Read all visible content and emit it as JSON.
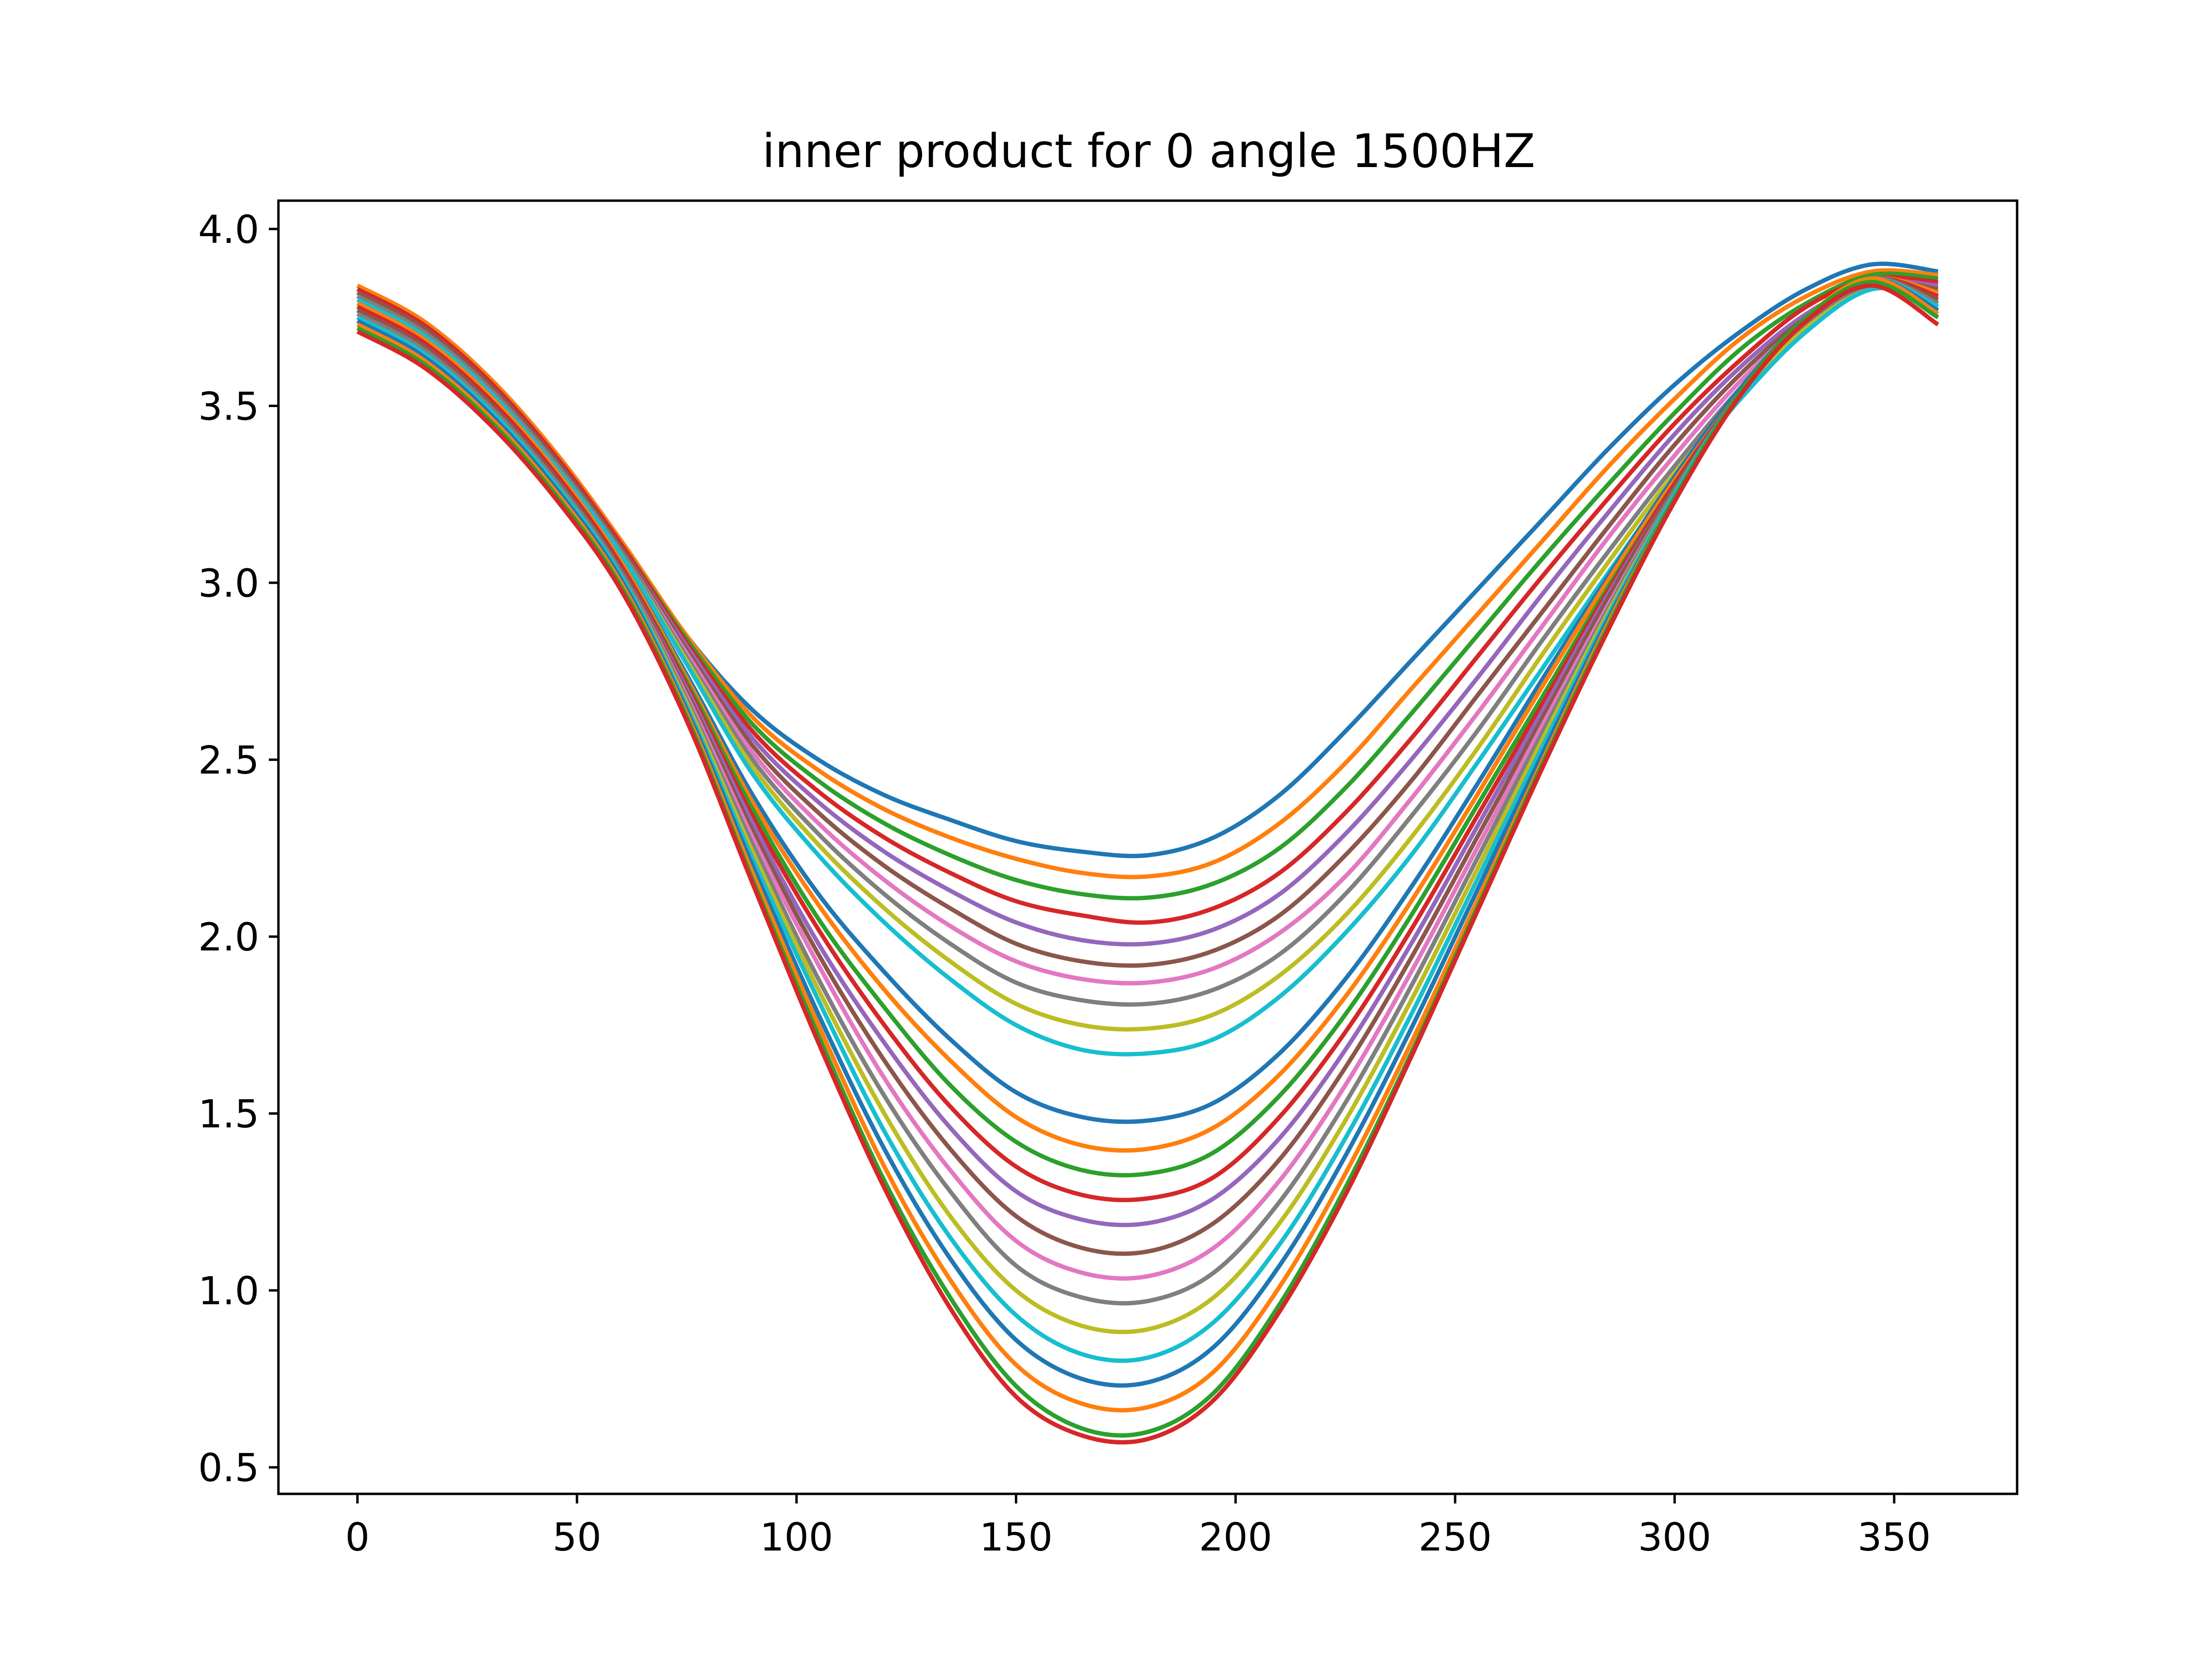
{
  "chart_data": {
    "type": "line",
    "title": "inner product for 0 angle 1500HZ",
    "xlabel": "",
    "ylabel": "",
    "xlim": [
      -18,
      378
    ],
    "ylim": [
      0.425,
      4.08
    ],
    "xticks": [
      0,
      50,
      100,
      150,
      200,
      250,
      300,
      350
    ],
    "xtick_labels": [
      "0",
      "50",
      "100",
      "150",
      "200",
      "250",
      "300",
      "350"
    ],
    "yticks": [
      0.5,
      1.0,
      1.5,
      2.0,
      2.5,
      3.0,
      3.5,
      4.0
    ],
    "ytick_labels": [
      "0.5",
      "1.0",
      "1.5",
      "2.0",
      "2.5",
      "3.0",
      "3.5",
      "4.0"
    ],
    "grid": false,
    "legend": "none",
    "series_colors": [
      "#1f77b4",
      "#ff7f0e",
      "#2ca02c",
      "#d62728",
      "#9467bd",
      "#8c564b",
      "#e377c2",
      "#7f7f7f",
      "#bcbd22",
      "#17becf"
    ],
    "x": [
      0,
      15,
      30,
      45,
      60,
      75,
      90,
      105,
      120,
      135,
      150,
      165,
      180,
      195,
      210,
      225,
      240,
      255,
      270,
      285,
      300,
      315,
      330,
      345,
      360
    ],
    "series": [
      {
        "values": [
          3.84,
          3.74,
          3.58,
          3.37,
          3.12,
          2.85,
          2.64,
          2.5,
          2.4,
          2.33,
          2.27,
          2.24,
          2.23,
          2.28,
          2.4,
          2.58,
          2.78,
          2.98,
          3.18,
          3.38,
          3.56,
          3.71,
          3.83,
          3.9,
          3.88
        ]
      },
      {
        "values": [
          3.84,
          3.74,
          3.58,
          3.37,
          3.12,
          2.85,
          2.62,
          2.47,
          2.36,
          2.28,
          2.22,
          2.18,
          2.17,
          2.21,
          2.32,
          2.49,
          2.7,
          2.91,
          3.12,
          3.33,
          3.52,
          3.69,
          3.81,
          3.88,
          3.87
        ]
      },
      {
        "values": [
          3.83,
          3.73,
          3.57,
          3.36,
          3.11,
          2.84,
          2.6,
          2.44,
          2.32,
          2.23,
          2.16,
          2.12,
          2.11,
          2.15,
          2.25,
          2.42,
          2.63,
          2.85,
          3.07,
          3.28,
          3.48,
          3.66,
          3.79,
          3.87,
          3.86
        ]
      },
      {
        "values": [
          3.83,
          3.73,
          3.57,
          3.36,
          3.11,
          2.83,
          2.58,
          2.41,
          2.28,
          2.18,
          2.1,
          2.06,
          2.04,
          2.08,
          2.18,
          2.35,
          2.56,
          2.79,
          3.02,
          3.24,
          3.45,
          3.63,
          3.78,
          3.86,
          3.85
        ]
      },
      {
        "values": [
          3.82,
          3.72,
          3.56,
          3.35,
          3.1,
          2.82,
          2.56,
          2.38,
          2.24,
          2.13,
          2.04,
          1.99,
          1.98,
          2.02,
          2.12,
          2.29,
          2.5,
          2.73,
          2.97,
          3.2,
          3.42,
          3.61,
          3.76,
          3.85,
          3.84
        ]
      },
      {
        "values": [
          3.82,
          3.72,
          3.56,
          3.35,
          3.1,
          2.81,
          2.54,
          2.35,
          2.2,
          2.08,
          1.98,
          1.93,
          1.92,
          1.96,
          2.06,
          2.23,
          2.44,
          2.68,
          2.92,
          3.16,
          3.39,
          3.59,
          3.75,
          3.85,
          3.83
        ]
      },
      {
        "values": [
          3.81,
          3.71,
          3.55,
          3.34,
          3.09,
          2.8,
          2.52,
          2.32,
          2.16,
          2.03,
          1.93,
          1.88,
          1.87,
          1.91,
          2.01,
          2.17,
          2.39,
          2.63,
          2.88,
          3.13,
          3.36,
          3.57,
          3.74,
          3.84,
          3.82
        ]
      },
      {
        "values": [
          3.81,
          3.71,
          3.55,
          3.34,
          3.09,
          2.79,
          2.5,
          2.29,
          2.12,
          1.98,
          1.87,
          1.82,
          1.81,
          1.85,
          1.95,
          2.12,
          2.34,
          2.58,
          2.84,
          3.09,
          3.33,
          3.55,
          3.73,
          3.84,
          3.81
        ]
      },
      {
        "values": [
          3.8,
          3.7,
          3.54,
          3.33,
          3.08,
          2.78,
          2.48,
          2.26,
          2.08,
          1.93,
          1.81,
          1.75,
          1.74,
          1.78,
          1.89,
          2.06,
          2.28,
          2.53,
          2.8,
          3.06,
          3.31,
          3.53,
          3.72,
          3.83,
          3.8
        ]
      },
      {
        "values": [
          3.8,
          3.7,
          3.54,
          3.33,
          3.08,
          2.77,
          2.46,
          2.23,
          2.04,
          1.88,
          1.75,
          1.68,
          1.67,
          1.71,
          1.83,
          2.01,
          2.23,
          2.49,
          2.76,
          3.03,
          3.29,
          3.52,
          3.71,
          3.83,
          3.8
        ]
      },
      {
        "values": [
          3.79,
          3.69,
          3.53,
          3.32,
          3.06,
          2.74,
          2.4,
          2.12,
          1.9,
          1.71,
          1.56,
          1.49,
          1.48,
          1.53,
          1.67,
          1.88,
          2.14,
          2.43,
          2.73,
          3.02,
          3.3,
          3.55,
          3.75,
          3.86,
          3.82
        ]
      },
      {
        "values": [
          3.79,
          3.69,
          3.53,
          3.32,
          3.06,
          2.73,
          2.38,
          2.09,
          1.85,
          1.65,
          1.49,
          1.41,
          1.4,
          1.46,
          1.61,
          1.83,
          2.1,
          2.4,
          2.71,
          3.01,
          3.29,
          3.54,
          3.75,
          3.86,
          3.82
        ]
      },
      {
        "values": [
          3.78,
          3.68,
          3.52,
          3.31,
          3.05,
          2.72,
          2.36,
          2.05,
          1.8,
          1.58,
          1.42,
          1.34,
          1.33,
          1.39,
          1.55,
          1.78,
          2.06,
          2.37,
          2.68,
          2.99,
          3.28,
          3.54,
          3.75,
          3.86,
          3.81
        ]
      },
      {
        "values": [
          3.78,
          3.68,
          3.52,
          3.31,
          3.05,
          2.71,
          2.34,
          2.02,
          1.75,
          1.52,
          1.35,
          1.27,
          1.26,
          1.32,
          1.49,
          1.73,
          2.02,
          2.34,
          2.66,
          2.98,
          3.28,
          3.54,
          3.75,
          3.86,
          3.81
        ]
      },
      {
        "values": [
          3.77,
          3.67,
          3.51,
          3.3,
          3.04,
          2.7,
          2.32,
          1.98,
          1.7,
          1.46,
          1.28,
          1.2,
          1.19,
          1.26,
          1.43,
          1.68,
          1.98,
          2.31,
          2.64,
          2.97,
          3.27,
          3.54,
          3.75,
          3.86,
          3.8
        ]
      },
      {
        "values": [
          3.77,
          3.67,
          3.51,
          3.3,
          3.04,
          2.69,
          2.3,
          1.95,
          1.65,
          1.4,
          1.21,
          1.12,
          1.11,
          1.19,
          1.37,
          1.63,
          1.94,
          2.28,
          2.62,
          2.96,
          3.27,
          3.54,
          3.75,
          3.86,
          3.8
        ]
      },
      {
        "values": [
          3.76,
          3.66,
          3.5,
          3.29,
          3.03,
          2.68,
          2.28,
          1.92,
          1.6,
          1.34,
          1.14,
          1.05,
          1.04,
          1.12,
          1.31,
          1.58,
          1.9,
          2.25,
          2.6,
          2.94,
          3.26,
          3.54,
          3.75,
          3.86,
          3.79
        ]
      },
      {
        "values": [
          3.76,
          3.66,
          3.5,
          3.29,
          3.03,
          2.67,
          2.26,
          1.88,
          1.55,
          1.28,
          1.07,
          0.98,
          0.97,
          1.05,
          1.25,
          1.53,
          1.86,
          2.22,
          2.58,
          2.93,
          3.26,
          3.54,
          3.75,
          3.86,
          3.79
        ]
      },
      {
        "values": [
          3.75,
          3.65,
          3.49,
          3.28,
          3.02,
          2.66,
          2.24,
          1.85,
          1.5,
          1.21,
          1.0,
          0.9,
          0.89,
          0.98,
          1.19,
          1.48,
          1.82,
          2.19,
          2.56,
          2.92,
          3.25,
          3.54,
          3.75,
          3.86,
          3.78
        ]
      },
      {
        "values": [
          3.75,
          3.65,
          3.49,
          3.28,
          3.02,
          2.65,
          2.22,
          1.82,
          1.45,
          1.15,
          0.93,
          0.82,
          0.81,
          0.91,
          1.13,
          1.43,
          1.78,
          2.16,
          2.54,
          2.91,
          3.25,
          3.54,
          3.75,
          3.86,
          3.78
        ]
      },
      {
        "values": [
          3.74,
          3.64,
          3.48,
          3.27,
          3.01,
          2.64,
          2.2,
          1.78,
          1.4,
          1.09,
          0.86,
          0.75,
          0.74,
          0.84,
          1.07,
          1.38,
          1.74,
          2.13,
          2.52,
          2.9,
          3.24,
          3.54,
          3.75,
          3.86,
          3.77
        ]
      },
      {
        "values": [
          3.73,
          3.63,
          3.47,
          3.26,
          3.0,
          2.63,
          2.18,
          1.75,
          1.35,
          1.03,
          0.79,
          0.68,
          0.67,
          0.77,
          1.01,
          1.33,
          1.7,
          2.1,
          2.5,
          2.89,
          3.24,
          3.54,
          3.75,
          3.86,
          3.76
        ]
      },
      {
        "values": [
          3.72,
          3.62,
          3.46,
          3.25,
          2.99,
          2.62,
          2.16,
          1.72,
          1.31,
          0.98,
          0.73,
          0.61,
          0.6,
          0.71,
          0.96,
          1.29,
          1.67,
          2.08,
          2.49,
          2.88,
          3.24,
          3.54,
          3.75,
          3.85,
          3.75
        ]
      },
      {
        "values": [
          3.71,
          3.61,
          3.45,
          3.24,
          2.98,
          2.61,
          2.15,
          1.7,
          1.29,
          0.95,
          0.7,
          0.59,
          0.58,
          0.69,
          0.94,
          1.27,
          1.66,
          2.07,
          2.48,
          2.87,
          3.23,
          3.53,
          3.74,
          3.84,
          3.73
        ]
      }
    ]
  }
}
